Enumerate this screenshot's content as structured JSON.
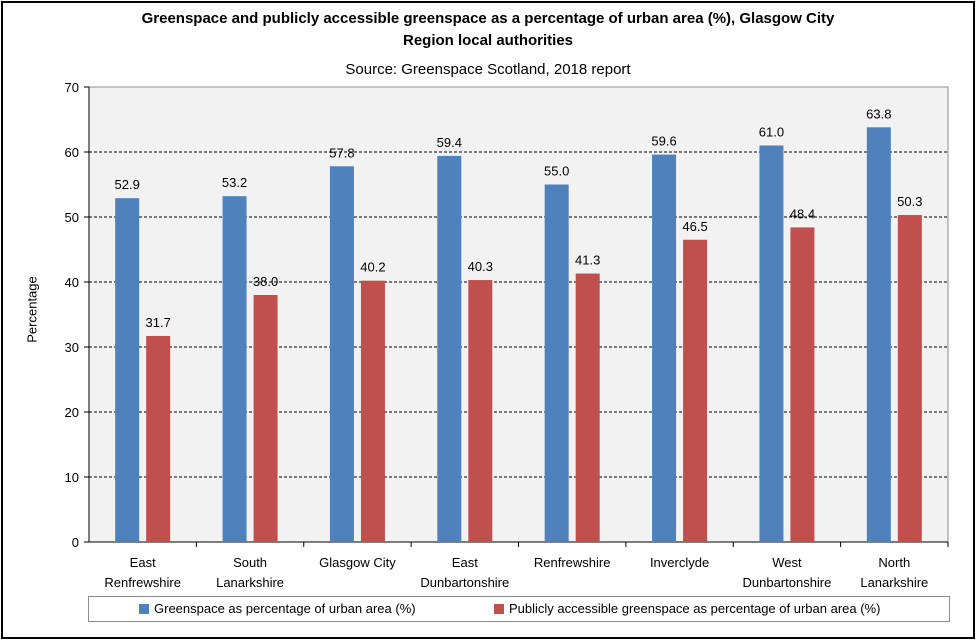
{
  "chart_data": {
    "type": "bar",
    "title_lines": [
      "Greenspace and publicly accessible greenspace as a percentage of urban area (%), Glasgow City",
      "Region local authorities"
    ],
    "subtitle": "Source: Greenspace Scotland, 2018 report",
    "xlabel": "",
    "ylabel": "Percentage",
    "ylim": [
      0,
      70
    ],
    "yticks": [
      "0",
      "10",
      "20",
      "30",
      "40",
      "50",
      "60",
      "70"
    ],
    "grid": true,
    "legend_position": "bottom",
    "categories": [
      [
        "East",
        "Renfrewshire"
      ],
      [
        "South",
        "Lanarkshire"
      ],
      [
        "Glasgow City"
      ],
      [
        "East",
        "Dunbartonshire"
      ],
      [
        "Renfrewshire"
      ],
      [
        "Inverclyde"
      ],
      [
        "West",
        "Dunbartonshire"
      ],
      [
        "North",
        "Lanarkshire"
      ]
    ],
    "series": [
      {
        "name": "Greenspace as percentage of urban area (%)",
        "color": "#4f81bd",
        "values": [
          52.9,
          53.2,
          57.8,
          59.4,
          55.0,
          59.6,
          61.0,
          63.8
        ],
        "labels": [
          "52.9",
          "53.2",
          "57.8",
          "59.4",
          "55.0",
          "59.6",
          "61.0",
          "63.8"
        ]
      },
      {
        "name": "Publicly accessible greenspace as percentage of urban area (%)",
        "color": "#c0504d",
        "values": [
          31.7,
          38.0,
          40.2,
          40.3,
          41.3,
          46.5,
          48.4,
          50.3
        ],
        "labels": [
          "31.7",
          "38.0",
          "40.2",
          "40.3",
          "41.3",
          "46.5",
          "48.4",
          "50.3"
        ]
      }
    ],
    "plot_background": "#f2f2f2"
  }
}
